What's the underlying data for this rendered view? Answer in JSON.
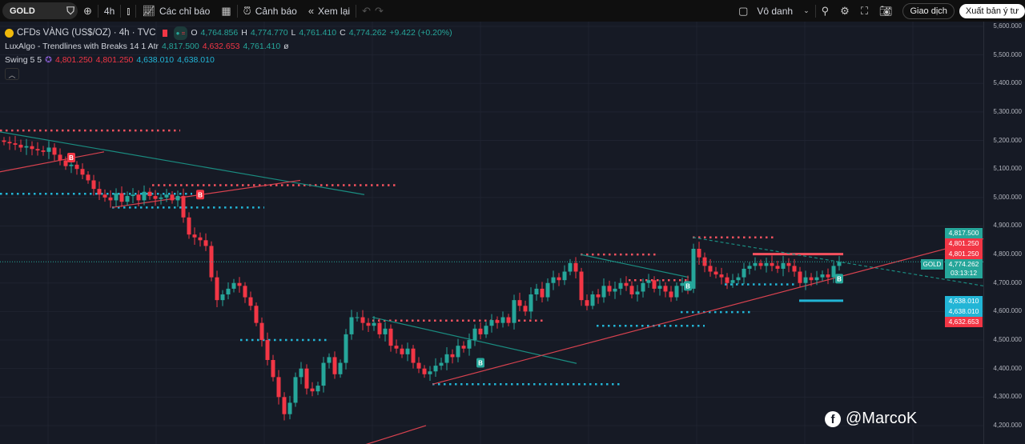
{
  "toolbar": {
    "symbol": "GOLD",
    "interval": "4h",
    "indicators": "Các chỉ báo",
    "alerts": "Cảnh báo",
    "replay": "Xem lại",
    "layout_name": "Vô danh",
    "trade": "Giao dịch",
    "publish": "Xuất bản ý tư"
  },
  "legend": {
    "title": "CFDs VÀNG (US$/OZ) · 4h · TVC",
    "o_label": "O",
    "o": "4,764.856",
    "h_label": "H",
    "h": "4,774.770",
    "l_label": "L",
    "l": "4,761.410",
    "c_label": "C",
    "c": "4,774.262",
    "change": "+9.422 (+0.20%)",
    "ind1_name": "LuxAlgo - Trendlines with Breaks 14 1 Atr",
    "ind1_v1": "4,817.500",
    "ind1_v2": "4,632.653",
    "ind1_v3": "4,761.410",
    "ind1_v4": "ø",
    "ind2_name": "Swing 5 5",
    "ind2_v1": "4,801.250",
    "ind2_v2": "4,801.250",
    "ind2_v3": "4,638.010",
    "ind2_v4": "4,638.010"
  },
  "axis": {
    "ticks": [
      "5,600.000",
      "5,500.000",
      "5,400.000",
      "5,300.000",
      "5,200.000",
      "5,100.000",
      "5,000.000",
      "4,900.000",
      "4,800.000",
      "4,700.000",
      "4,600.000",
      "4,500.000",
      "4,400.000",
      "4,300.000",
      "4,200.000"
    ],
    "labels": [
      {
        "text": "4,817.500",
        "price": 4817.5,
        "color": "#26a69a"
      },
      {
        "text": "4,801.250",
        "price": 4801.25,
        "color": "#f23645"
      },
      {
        "text": "4,801.250",
        "price": 4801.25,
        "color": "#f23645"
      },
      {
        "text": "4,774.262",
        "price": 4774.262,
        "color": "#26a69a",
        "sub": "03:13:12"
      },
      {
        "text": "4,638.010",
        "price": 4638.01,
        "color": "#22b5d6"
      },
      {
        "text": "4,638.010",
        "price": 4638.01,
        "color": "#22b5d6"
      },
      {
        "text": "4,632.653",
        "price": 4632.653,
        "color": "#f23645"
      }
    ],
    "symbol_tag": "GOLD"
  },
  "colors": {
    "up": "#26a69a",
    "down": "#f23645",
    "swing_high": "#f7525f",
    "swing_low": "#22b5d6"
  },
  "closes": [
    5195,
    5190,
    5185,
    5175,
    5180,
    5170,
    5165,
    5160,
    5175,
    5150,
    5130,
    5110,
    5115,
    5100,
    5080,
    5060,
    5030,
    5010,
    5000,
    4990,
    5015,
    4985,
    5005,
    5010,
    4990,
    5020,
    5005,
    4995,
    5000,
    5010,
    4990,
    5005,
    4930,
    4870,
    4860,
    4850,
    4830,
    4720,
    4640,
    4660,
    4680,
    4700,
    4690,
    4650,
    4620,
    4560,
    4500,
    4430,
    4370,
    4300,
    4240,
    4280,
    4370,
    4400,
    4330,
    4320,
    4340,
    4420,
    4440,
    4380,
    4420,
    4520,
    4580,
    4580,
    4560,
    4550,
    4560,
    4520,
    4540,
    4480,
    4470,
    4450,
    4470,
    4420,
    4400,
    4380,
    4390,
    4410,
    4420,
    4450,
    4440,
    4480,
    4470,
    4500,
    4540,
    4520,
    4550,
    4570,
    4560,
    4580,
    4560,
    4640,
    4620,
    4600,
    4660,
    4680,
    4650,
    4700,
    4720,
    4710,
    4740,
    4770,
    4740,
    4640,
    4620,
    4660,
    4650,
    4690,
    4670,
    4680,
    4700,
    4690,
    4660,
    4670,
    4700,
    4710,
    4680,
    4690,
    4670,
    4650,
    4690,
    4700,
    4680,
    4820,
    4790,
    4760,
    4740,
    4730,
    4720,
    4700,
    4710,
    4720,
    4750,
    4760,
    4770,
    4760,
    4770,
    4760,
    4750,
    4770,
    4760,
    4740,
    4700,
    4720,
    4710,
    4720,
    4730,
    4720,
    4760,
    4774.262
  ],
  "swing_highs": [
    5235,
    5043,
    4568,
    4800,
    4710,
    4860
  ],
  "swing_lows": [
    5013,
    4965,
    4500,
    4345,
    4550,
    4598,
    4695
  ],
  "breaks": [
    "B",
    "B",
    "B",
    "B",
    "B"
  ],
  "watermark": "@MarcoK"
}
